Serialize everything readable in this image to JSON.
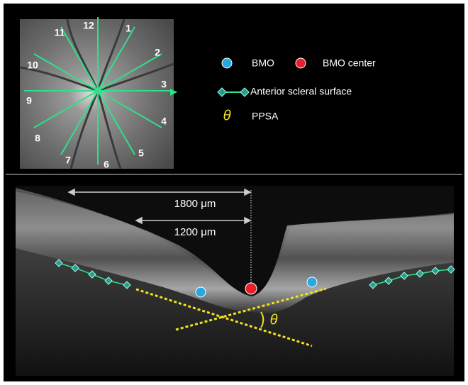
{
  "fundus": {
    "labels": [
      "1",
      "2",
      "3",
      "4",
      "5",
      "6",
      "7",
      "8",
      "9",
      "10",
      "11",
      "12"
    ]
  },
  "legend": {
    "items": [
      {
        "label": "BMO"
      },
      {
        "label": "BMO center"
      },
      {
        "label": "Anterior scleral surface"
      },
      {
        "symbol": "θ",
        "label": "PPSA"
      }
    ]
  },
  "oct": {
    "measurements": [
      "1800 μm",
      "1200 μm"
    ],
    "angle_label": "θ"
  }
}
